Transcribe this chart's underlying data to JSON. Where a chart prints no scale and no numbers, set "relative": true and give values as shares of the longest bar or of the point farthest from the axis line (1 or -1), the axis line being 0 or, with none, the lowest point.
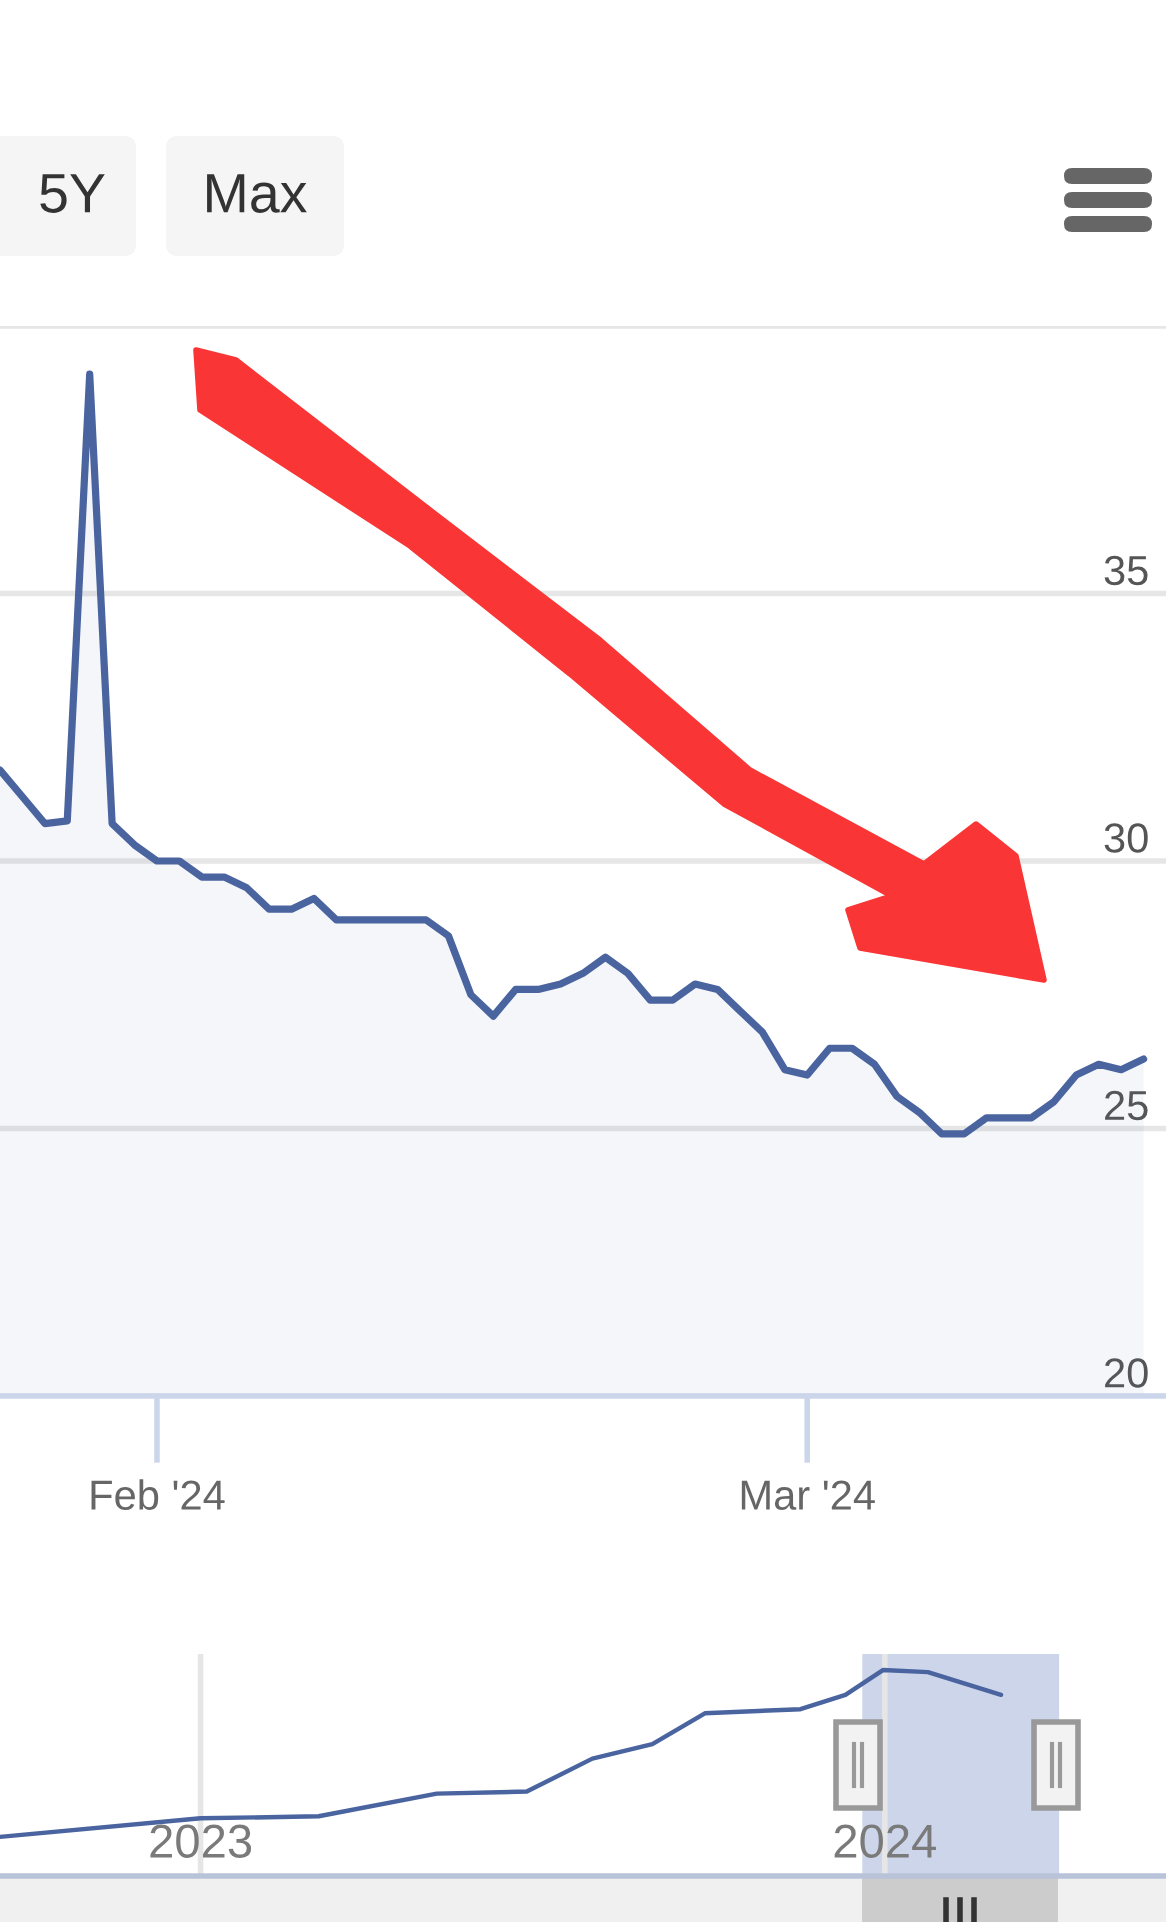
{
  "chart_data": [
    {
      "type": "other",
      "annotations": [
        "5Y",
        "Max"
      ]
    },
    {
      "type": "area",
      "x": [
        "2024-01-25",
        "2024-01-26",
        "2024-01-27",
        "2024-01-28",
        "2024-01-29",
        "2024-01-30",
        "2024-01-31",
        "2024-02-01",
        "2024-02-02",
        "2024-02-03",
        "2024-02-04",
        "2024-02-05",
        "2024-02-06",
        "2024-02-07",
        "2024-02-08",
        "2024-02-09",
        "2024-02-10",
        "2024-02-11",
        "2024-02-13",
        "2024-02-14",
        "2024-02-15",
        "2024-02-16",
        "2024-02-17",
        "2024-02-18",
        "2024-02-19",
        "2024-02-20",
        "2024-02-21",
        "2024-02-22",
        "2024-02-23",
        "2024-02-24",
        "2024-02-25",
        "2024-02-26",
        "2024-02-27",
        "2024-02-28",
        "2024-02-29",
        "2024-03-01",
        "2024-03-02",
        "2024-03-03",
        "2024-03-04",
        "2024-03-05",
        "2024-03-06",
        "2024-03-07",
        "2024-03-08",
        "2024-03-09",
        "2024-03-10",
        "2024-03-11",
        "2024-03-12",
        "2024-03-13",
        "2024-03-14",
        "2024-03-15",
        "2024-03-16"
      ],
      "series": [
        {
          "color": "#4a64a0",
          "values": [
            31.7,
            31.2,
            30.7,
            30.75,
            39.1,
            30.7,
            30.3,
            30.0,
            30.0,
            29.7,
            29.7,
            29.5,
            29.1,
            29.1,
            29.3,
            28.9,
            28.9,
            28.9,
            28.9,
            28.6,
            27.5,
            27.1,
            27.6,
            27.6,
            27.7,
            27.9,
            28.2,
            27.9,
            27.4,
            27.4,
            27.7,
            27.6,
            27.2,
            26.8,
            26.1,
            26.0,
            26.5,
            26.5,
            26.2,
            25.6,
            25.3,
            24.9,
            24.9,
            25.2,
            25.2,
            25.2,
            25.5,
            26.0,
            26.2,
            26.1,
            26.3
          ]
        }
      ],
      "xlim": [
        "2024-01-25",
        "2024-03-17"
      ],
      "xticks": [
        {
          "value": "2024-02-01",
          "label": "Feb '24"
        },
        {
          "value": "2024-03-01",
          "label": "Mar '24"
        }
      ],
      "ylim": [
        20,
        40
      ],
      "yticks": [
        20,
        25,
        30,
        35,
        {
          "value": 40,
          "label": null
        }
      ],
      "grid": "y",
      "legend": false,
      "marker": "none",
      "line_style": "solid"
    },
    {
      "type": "line",
      "relative": true,
      "x": [
        "2022-09-16",
        "2023-01-01",
        "2023-03-05",
        "2023-05-07",
        "2023-06-24",
        "2023-07-29",
        "2023-08-30",
        "2023-09-27",
        "2023-11-17",
        "2023-12-11",
        "2023-12-31",
        "2024-01-24",
        "2024-03-03"
      ],
      "series": [
        {
          "color": "#4a64a0",
          "values": [
            0.19,
            0.28,
            0.29,
            0.4,
            0.41,
            0.57,
            0.64,
            0.79,
            0.81,
            0.88,
            1.0,
            0.99,
            0.88
          ]
        }
      ],
      "xlim": [
        "2022-09-16",
        "2024-05-30"
      ],
      "xticks": [
        {
          "value": "2023-01-01",
          "label": "2023"
        },
        {
          "value": "2024-01-01",
          "label": "2024"
        }
      ],
      "bands": [
        {
          "axis": "x",
          "from": "2023-12-20",
          "to": "2024-04-03",
          "color": "#ccd5ea"
        }
      ],
      "grid": "x",
      "legend": false,
      "marker": "none",
      "line_style": "solid"
    }
  ]
}
